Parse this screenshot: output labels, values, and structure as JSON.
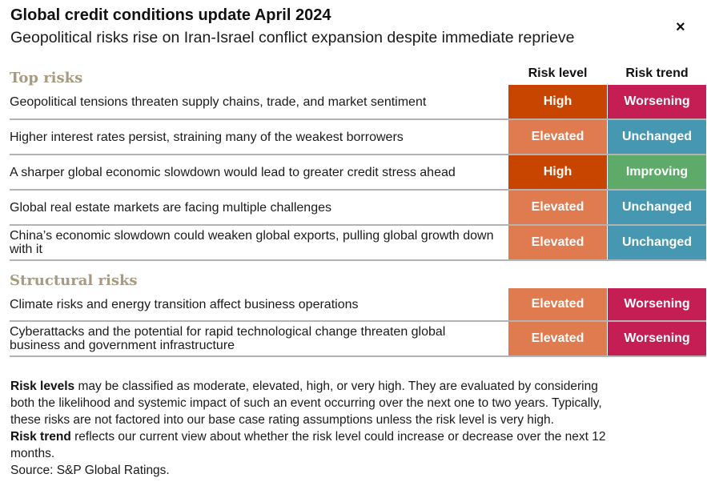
{
  "header": {
    "title": "Global credit conditions update April 2024",
    "subtitle": "Geopolitical risks rise on Iran-Israel conflict expansion despite immediate reprieve",
    "close_symbol": "×"
  },
  "columns": {
    "risk_level": "Risk level",
    "risk_trend": "Risk trend"
  },
  "colors": {
    "high": "#c84500",
    "elevated": "#e07a4f",
    "worsening": "#c41e54",
    "unchanged": "#4698b2",
    "improving": "#5eaa69",
    "section_heading": "#a89a7e",
    "divider": "#b3b3b3"
  },
  "sections": {
    "top": {
      "heading": "Top risks",
      "rows": [
        {
          "text": "Geopolitical tensions threaten supply chains, trade, and market sentiment",
          "level": "High",
          "level_key": "high",
          "trend": "Worsening",
          "trend_key": "worsening"
        },
        {
          "text": "Higher interest rates persist, straining many of the weakest borrowers",
          "level": "Elevated",
          "level_key": "elevated",
          "trend": "Unchanged",
          "trend_key": "unchanged"
        },
        {
          "text": "A sharper global economic slowdown would lead to greater credit stress ahead",
          "level": "High",
          "level_key": "high",
          "trend": "Improving",
          "trend_key": "improving"
        },
        {
          "text": "Global real estate markets are facing multiple challenges",
          "level": "Elevated",
          "level_key": "elevated",
          "trend": "Unchanged",
          "trend_key": "unchanged"
        },
        {
          "text": "China’s economic slowdown could weaken global exports, pulling global growth down with it",
          "level": "Elevated",
          "level_key": "elevated",
          "trend": "Unchanged",
          "trend_key": "unchanged"
        }
      ]
    },
    "structural": {
      "heading": "Structural risks",
      "rows": [
        {
          "text": "Climate risks and energy transition affect business operations",
          "level": "Elevated",
          "level_key": "elevated",
          "trend": "Worsening",
          "trend_key": "worsening"
        },
        {
          "text": "Cyberattacks and the potential for rapid technological change threaten global business and government infrastructure",
          "level": "Elevated",
          "level_key": "elevated",
          "trend": "Worsening",
          "trend_key": "worsening"
        }
      ]
    }
  },
  "notes": {
    "levels_term": "Risk levels",
    "levels_text": " may be classified as moderate, elevated, high, or very high. They are evaluated by considering both the likelihood and systemic impact of such an event occurring over the next one to two years. Typically, these risks are not factored into our base case rating assumptions unless the risk level is very high.",
    "trend_term": "Risk trend",
    "trend_text": " reflects our current view about whether the risk level could increase or decrease over the next 12 months.",
    "source": "Source: S&P Global Ratings."
  }
}
